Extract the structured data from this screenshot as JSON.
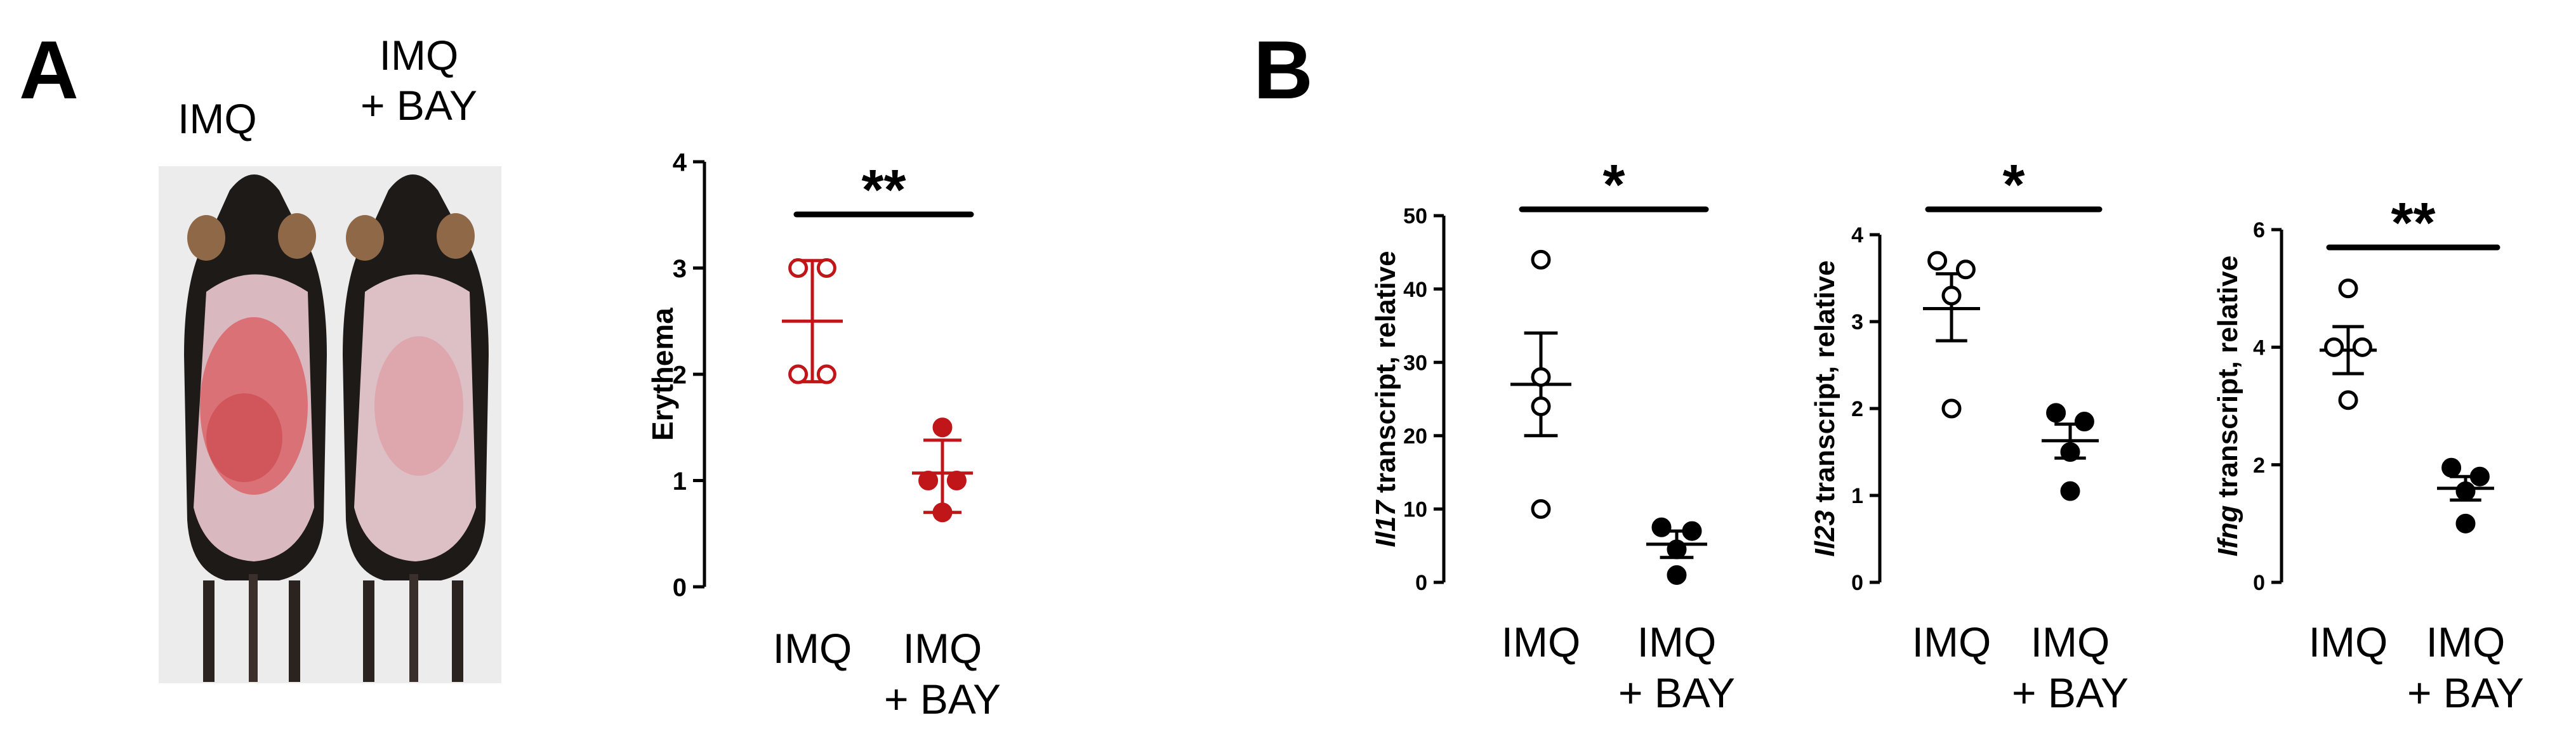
{
  "panels": {
    "a": {
      "letter": "A"
    },
    "b": {
      "letter": "B"
    }
  },
  "photo": {
    "label_left": "IMQ",
    "label_right_line1": "IMQ",
    "label_right_line2": "+ BAY"
  },
  "colors": {
    "erythema_series": "#c0161a",
    "marker_fill_treated_b": "#000000",
    "axis": "#000000",
    "photo_background": "#ececec",
    "mouse_fur": "#1e1a17",
    "skin": "#d9b9bf",
    "erythema_patch": "#d95a5e"
  },
  "chart_data": [
    {
      "type": "scatter",
      "panel": "A",
      "ylabel": "Erythema",
      "ylim": [
        0,
        4
      ],
      "yticks": [
        0,
        1,
        2,
        3,
        4
      ],
      "categories": [
        "IMQ",
        "IMQ\n+ BAY"
      ],
      "category_lines": [
        [
          "IMQ"
        ],
        [
          "IMQ",
          "+ BAY"
        ]
      ],
      "significance": "**",
      "error_style": "sd-caps",
      "groups": [
        {
          "category": "IMQ",
          "points": [
            3,
            3,
            2,
            2
          ],
          "mean": 2.5,
          "err_low": 1.93,
          "err_high": 3.07,
          "marker": "open",
          "color": "#c0161a"
        },
        {
          "category": "IMQ\n+ BAY",
          "points": [
            1.5,
            1,
            1,
            0.7
          ],
          "mean": 1.07,
          "err_low": 0.7,
          "err_high": 1.38,
          "marker": "filled",
          "color": "#c0161a"
        }
      ]
    },
    {
      "type": "scatter",
      "panel": "B",
      "ylabel_gene": "Il17",
      "ylabel_rest": " transcript, relative",
      "ylim": [
        0,
        50
      ],
      "yticks": [
        0,
        10,
        20,
        30,
        40,
        50
      ],
      "categories": [
        "IMQ",
        "IMQ\n+ BAY"
      ],
      "category_lines": [
        [
          "IMQ"
        ],
        [
          "IMQ",
          "+ BAY"
        ]
      ],
      "significance": "*",
      "error_style": "sem",
      "groups": [
        {
          "category": "IMQ",
          "points": [
            44,
            28,
            24,
            10
          ],
          "mean": 27,
          "err_low": 20,
          "err_high": 34,
          "marker": "open",
          "color": "#000000"
        },
        {
          "category": "IMQ\n+ BAY",
          "points": [
            7.5,
            7,
            4.5,
            1
          ],
          "mean": 5.2,
          "err_low": 3.4,
          "err_high": 7,
          "marker": "filled",
          "color": "#000000"
        }
      ]
    },
    {
      "type": "scatter",
      "panel": "B",
      "ylabel_gene": "Il23",
      "ylabel_rest": " transcript, relative",
      "ylim": [
        0,
        4
      ],
      "yticks": [
        0,
        1,
        2,
        3,
        4
      ],
      "categories": [
        "IMQ",
        "IMQ\n+ BAY"
      ],
      "category_lines": [
        [
          "IMQ"
        ],
        [
          "IMQ",
          "+ BAY"
        ]
      ],
      "significance": "*",
      "error_style": "sem",
      "groups": [
        {
          "category": "IMQ",
          "points": [
            3.7,
            3.6,
            3.3,
            2
          ],
          "mean": 3.15,
          "err_low": 2.78,
          "err_high": 3.55,
          "marker": "open",
          "color": "#000000"
        },
        {
          "category": "IMQ\n+ BAY",
          "points": [
            1.95,
            1.85,
            1.5,
            1.05
          ],
          "mean": 1.63,
          "err_low": 1.43,
          "err_high": 1.82,
          "marker": "filled",
          "color": "#000000"
        }
      ]
    },
    {
      "type": "scatter",
      "panel": "B",
      "ylabel_gene": "Ifng",
      "ylabel_rest": " transcript, relative",
      "ylim": [
        0,
        6
      ],
      "yticks": [
        0,
        2,
        4,
        6
      ],
      "categories": [
        "IMQ",
        "IMQ\n+ BAY"
      ],
      "category_lines": [
        [
          "IMQ"
        ],
        [
          "IMQ",
          "+ BAY"
        ]
      ],
      "significance": "**",
      "error_style": "sem",
      "groups": [
        {
          "category": "IMQ",
          "points": [
            5,
            4,
            4,
            3.1
          ],
          "mean": 3.95,
          "err_low": 3.55,
          "err_high": 4.35,
          "marker": "open",
          "color": "#000000"
        },
        {
          "category": "IMQ\n+ BAY",
          "points": [
            1.95,
            1.8,
            1.55,
            1.0
          ],
          "mean": 1.6,
          "err_low": 1.4,
          "err_high": 1.8,
          "marker": "filled",
          "color": "#000000"
        }
      ]
    }
  ]
}
